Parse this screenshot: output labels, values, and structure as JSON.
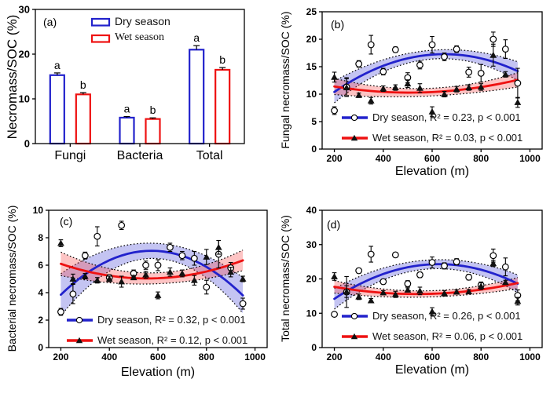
{
  "figure": {
    "background": "#ffffff",
    "colors": {
      "dry_blue": "#2222cc",
      "wet_red": "#ee1111",
      "dry_band": "rgba(70,70,215,0.32)",
      "wet_band": "rgba(250,60,60,0.30)",
      "axis": "#000000",
      "marker_outline": "#000000"
    }
  },
  "chart_data": [
    {
      "type": "bar",
      "panel_label": "(a)",
      "ylabel": "Necromass/SOC (%)",
      "categories": [
        "Fungi",
        "Bacteria",
        "Total"
      ],
      "ylim": [
        0,
        30
      ],
      "yticks": [
        0,
        10,
        20,
        30
      ],
      "series": [
        {
          "name": "Dry season",
          "color": "#2222cc",
          "values": [
            15.3,
            5.8,
            21.0
          ],
          "errors": [
            0.5,
            0.25,
            0.9
          ],
          "letters": [
            "a",
            "a",
            "a"
          ]
        },
        {
          "name": "Wet season",
          "color": "#ee1111",
          "values": [
            11.0,
            5.5,
            16.5
          ],
          "errors": [
            0.4,
            0.25,
            0.5
          ],
          "letters": [
            "b",
            "b",
            "b"
          ]
        }
      ]
    },
    {
      "type": "scatter",
      "panel_label": "(b)",
      "ylabel": "Fungal necromass/SOC (%)",
      "xlabel": "Elevation (m)",
      "xlim": [
        150,
        1050
      ],
      "ylim": [
        0,
        25
      ],
      "xticks": [
        200,
        400,
        600,
        800,
        1000
      ],
      "yticks": [
        0,
        5,
        10,
        15,
        20,
        25
      ],
      "series": [
        {
          "name": "Dry season",
          "marker": "circle",
          "color": "#2222cc",
          "band": "rgba(70,70,215,0.32)",
          "legend": "Dry season, R² = 0.23, p < 0.001",
          "fit": {
            "through": [
              [
                200,
                10.4
              ],
              [
                600,
                17.2
              ],
              [
                950,
                14.2
              ]
            ],
            "hw_end": 1.7,
            "hw_mid": 0.8
          },
          "points": [
            [
              200,
              7.0,
              0.7
            ],
            [
              250,
              11.3,
              1.7
            ],
            [
              300,
              15.5,
              0.6
            ],
            [
              350,
              19.0,
              1.7
            ],
            [
              400,
              14.1,
              0.6
            ],
            [
              450,
              18.1,
              0.5
            ],
            [
              500,
              13.0,
              0.9
            ],
            [
              550,
              15.3,
              0.7
            ],
            [
              600,
              19.0,
              1.5
            ],
            [
              650,
              16.8,
              0.7
            ],
            [
              700,
              18.2,
              0.6
            ],
            [
              750,
              14.0,
              0.9
            ],
            [
              800,
              13.8,
              1.6
            ],
            [
              850,
              20.0,
              1.3
            ],
            [
              900,
              18.2,
              1.7
            ],
            [
              950,
              12.0,
              2.7
            ]
          ]
        },
        {
          "name": "Wet season",
          "marker": "triangle",
          "color": "#ee1111",
          "band": "rgba(250,60,60,0.30)",
          "legend": "Wet season, R² = 0.03, p < 0.001",
          "fit": {
            "through": [
              [
                200,
                11.4
              ],
              [
                550,
                10.3
              ],
              [
                950,
                12.6
              ]
            ],
            "hw_end": 1.3,
            "hw_mid": 0.7
          },
          "points": [
            [
              200,
              13.1,
              0.9
            ],
            [
              250,
              11.2,
              1.6
            ],
            [
              300,
              9.8,
              0.4
            ],
            [
              350,
              8.8,
              0.6
            ],
            [
              400,
              11.0,
              0.5
            ],
            [
              450,
              11.2,
              0.5
            ],
            [
              500,
              11.9,
              0.7
            ],
            [
              550,
              11.1,
              0.8
            ],
            [
              600,
              6.8,
              0.9
            ],
            [
              650,
              10.0,
              0.5
            ],
            [
              700,
              10.9,
              0.5
            ],
            [
              750,
              11.2,
              0.5
            ],
            [
              800,
              11.3,
              0.6
            ],
            [
              850,
              17.1,
              2.0
            ],
            [
              900,
              13.6,
              0.5
            ],
            [
              950,
              8.5,
              0.9
            ]
          ]
        }
      ]
    },
    {
      "type": "scatter",
      "panel_label": "(c)",
      "ylabel": "Bacterial necromass/SOC (%)",
      "xlabel": "Elevation (m)",
      "xlim": [
        150,
        1050
      ],
      "ylim": [
        0,
        10
      ],
      "xticks": [
        200,
        400,
        600,
        800,
        1000
      ],
      "yticks": [
        0,
        2,
        4,
        6,
        8,
        10
      ],
      "series": [
        {
          "name": "Dry season",
          "marker": "circle",
          "color": "#2222cc",
          "band": "rgba(70,70,215,0.32)",
          "legend": "Dry season, R² = 0.32, p < 0.001",
          "fit": {
            "through": [
              [
                200,
                3.85
              ],
              [
                575,
                7.05
              ],
              [
                950,
                3.8
              ]
            ],
            "hw_end": 1.3,
            "hw_mid": 0.55
          },
          "points": [
            [
              200,
              2.6,
              0.25
            ],
            [
              250,
              3.9,
              0.7
            ],
            [
              300,
              6.7,
              0.25
            ],
            [
              350,
              8.1,
              0.7
            ],
            [
              400,
              5.1,
              0.2
            ],
            [
              450,
              8.9,
              0.3
            ],
            [
              500,
              5.4,
              0.25
            ],
            [
              550,
              6.0,
              0.3
            ],
            [
              600,
              6.0,
              0.4
            ],
            [
              650,
              7.3,
              0.3
            ],
            [
              700,
              6.7,
              0.3
            ],
            [
              750,
              6.5,
              0.5
            ],
            [
              800,
              4.4,
              0.5
            ],
            [
              850,
              6.8,
              1.0
            ],
            [
              900,
              5.8,
              0.4
            ],
            [
              950,
              3.2,
              0.4
            ]
          ]
        },
        {
          "name": "Wet season",
          "marker": "triangle",
          "color": "#ee1111",
          "band": "rgba(250,60,60,0.30)",
          "legend": "Wet season, R² = 0.12, p < 0.001",
          "fit": {
            "through": [
              [
                200,
                6.1
              ],
              [
                600,
                5.05
              ],
              [
                950,
                6.35
              ]
            ],
            "hw_end": 0.75,
            "hw_mid": 0.4
          },
          "points": [
            [
              200,
              7.6,
              0.25
            ],
            [
              250,
              5.0,
              0.35
            ],
            [
              300,
              5.2,
              0.2
            ],
            [
              350,
              4.9,
              0.2
            ],
            [
              400,
              5.0,
              0.2
            ],
            [
              450,
              4.8,
              0.4
            ],
            [
              500,
              5.1,
              0.15
            ],
            [
              550,
              5.3,
              0.25
            ],
            [
              600,
              3.8,
              0.25
            ],
            [
              650,
              5.5,
              0.3
            ],
            [
              700,
              5.4,
              0.25
            ],
            [
              750,
              4.9,
              0.35
            ],
            [
              800,
              6.6,
              0.55
            ],
            [
              850,
              7.3,
              0.5
            ],
            [
              900,
              5.5,
              0.35
            ],
            [
              950,
              5.0,
              0.2
            ]
          ]
        }
      ]
    },
    {
      "type": "scatter",
      "panel_label": "(d)",
      "ylabel": "Total necromass/SOC (%)",
      "xlabel": "Elevation (m)",
      "xlim": [
        150,
        1050
      ],
      "ylim": [
        0,
        40
      ],
      "xticks": [
        200,
        400,
        600,
        800,
        1000
      ],
      "yticks": [
        0,
        10,
        20,
        30,
        40
      ],
      "series": [
        {
          "name": "Dry season",
          "marker": "circle",
          "color": "#2222cc",
          "band": "rgba(70,70,215,0.32)",
          "legend": "Dry season, R² = 0.26, p < 0.001",
          "fit": {
            "through": [
              [
                200,
                14.2
              ],
              [
                620,
                24.3
              ],
              [
                950,
                18.6
              ]
            ],
            "hw_end": 2.6,
            "hw_mid": 1.3
          },
          "points": [
            [
              200,
              9.7,
              0.6
            ],
            [
              250,
              16.2,
              4.5
            ],
            [
              300,
              22.4,
              0.7
            ],
            [
              350,
              27.2,
              2.3
            ],
            [
              400,
              19.2,
              0.7
            ],
            [
              450,
              27.0,
              0.4
            ],
            [
              500,
              18.6,
              0.9
            ],
            [
              550,
              21.2,
              0.8
            ],
            [
              600,
              24.8,
              1.6
            ],
            [
              650,
              23.8,
              0.9
            ],
            [
              700,
              25.0,
              0.9
            ],
            [
              750,
              20.5,
              0.8
            ],
            [
              800,
              18.2,
              0.9
            ],
            [
              850,
              26.8,
              1.9
            ],
            [
              900,
              23.5,
              2.6
            ],
            [
              950,
              15.2,
              1.6
            ]
          ]
        },
        {
          "name": "Wet season",
          "marker": "triangle",
          "color": "#ee1111",
          "band": "rgba(250,60,60,0.30)",
          "legend": "Wet season, R² = 0.06, p < 0.001",
          "fit": {
            "through": [
              [
                200,
                17.7
              ],
              [
                550,
                15.6
              ],
              [
                950,
                18.8
              ]
            ],
            "hw_end": 1.6,
            "hw_mid": 0.9
          },
          "points": [
            [
              200,
              20.7,
              1.1
            ],
            [
              250,
              16.3,
              1.7
            ],
            [
              300,
              14.8,
              0.8
            ],
            [
              350,
              13.7,
              0.6
            ],
            [
              400,
              16.0,
              0.6
            ],
            [
              450,
              15.5,
              0.9
            ],
            [
              500,
              16.8,
              0.6
            ],
            [
              550,
              16.5,
              1.1
            ],
            [
              600,
              10.5,
              1.1
            ],
            [
              650,
              15.8,
              0.8
            ],
            [
              700,
              16.2,
              0.6
            ],
            [
              750,
              16.3,
              0.6
            ],
            [
              800,
              17.9,
              1.0
            ],
            [
              850,
              24.5,
              0.9
            ],
            [
              900,
              19.0,
              0.6
            ],
            [
              950,
              13.5,
              1.1
            ]
          ]
        }
      ]
    }
  ]
}
